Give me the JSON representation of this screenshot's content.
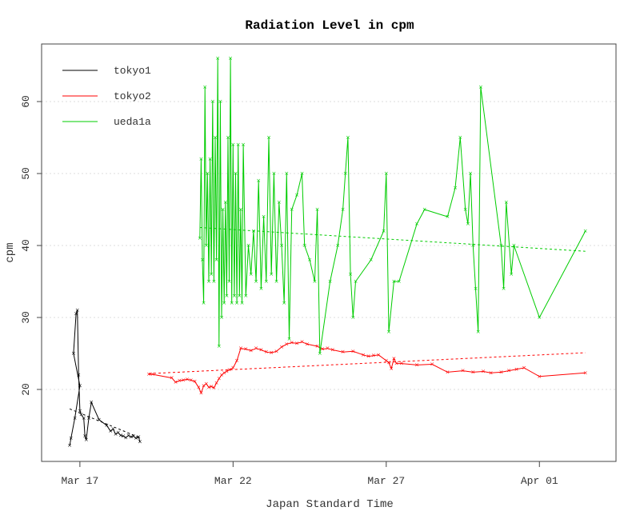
{
  "chart_data": {
    "type": "line",
    "title": "Radiation Level in cpm",
    "xlabel": "Japan Standard Time",
    "ylabel": "cpm",
    "x_type": "date",
    "xlim": [
      "2011-03-15T18:00",
      "2011-04-03T12:00"
    ],
    "ylim": [
      10,
      68
    ],
    "x_ticks": [
      {
        "label": "Mar 17",
        "value": "2011-03-17T00:00"
      },
      {
        "label": "Mar 22",
        "value": "2011-03-22T00:00"
      },
      {
        "label": "Mar 27",
        "value": "2011-03-27T00:00"
      },
      {
        "label": "Apr 01",
        "value": "2011-04-01T00:00"
      }
    ],
    "y_ticks": [
      20,
      30,
      40,
      50,
      60
    ],
    "grid": "horizontal dotted",
    "legend_position": "top-left",
    "series": [
      {
        "name": "tokyo1",
        "color": "#000000",
        "marker": "x",
        "points": [
          [
            "2011-03-16T16:00",
            12.2
          ],
          [
            "2011-03-16T17:00",
            13.2
          ],
          [
            "2011-03-16T20:00",
            16.0
          ],
          [
            "2011-03-17T00:00",
            20.5
          ],
          [
            "2011-03-16T19:00",
            25.0
          ],
          [
            "2011-03-16T21:00",
            30.5
          ],
          [
            "2011-03-16T22:00",
            31.0
          ],
          [
            "2011-03-16T23:00",
            22.0
          ],
          [
            "2011-03-17T00:00",
            17.0
          ],
          [
            "2011-03-17T01:00",
            16.5
          ],
          [
            "2011-03-17T03:00",
            16.0
          ],
          [
            "2011-03-17T04:00",
            13.5
          ],
          [
            "2011-03-17T05:00",
            13.0
          ],
          [
            "2011-03-17T07:00",
            16.0
          ],
          [
            "2011-03-17T09:00",
            18.2
          ],
          [
            "2011-03-17T15:00",
            15.8
          ],
          [
            "2011-03-17T21:00",
            15.0
          ],
          [
            "2011-03-18T00:00",
            14.2
          ],
          [
            "2011-03-18T02:00",
            14.5
          ],
          [
            "2011-03-18T04:00",
            13.8
          ],
          [
            "2011-03-18T06:00",
            14.0
          ],
          [
            "2011-03-18T08:00",
            13.6
          ],
          [
            "2011-03-18T10:00",
            13.5
          ],
          [
            "2011-03-18T12:00",
            13.3
          ],
          [
            "2011-03-18T14:00",
            13.6
          ],
          [
            "2011-03-18T16:00",
            13.4
          ],
          [
            "2011-03-18T18:00",
            13.5
          ],
          [
            "2011-03-18T20:00",
            13.2
          ],
          [
            "2011-03-18T22:00",
            13.4
          ],
          [
            "2011-03-18T23:00",
            12.7
          ]
        ],
        "trend": [
          [
            "2011-03-16T16:00",
            17.3
          ],
          [
            "2011-03-18T23:00",
            13.3
          ]
        ]
      },
      {
        "name": "tokyo2",
        "color": "#ff0000",
        "marker": "x",
        "points": [
          [
            "2011-03-19T06:00",
            22.1
          ],
          [
            "2011-03-19T09:00",
            22.1
          ],
          [
            "2011-03-20T00:00",
            21.6
          ],
          [
            "2011-03-20T03:00",
            21.0
          ],
          [
            "2011-03-20T06:00",
            21.2
          ],
          [
            "2011-03-20T09:00",
            21.3
          ],
          [
            "2011-03-20T12:00",
            21.4
          ],
          [
            "2011-03-20T15:00",
            21.3
          ],
          [
            "2011-03-20T18:00",
            21.1
          ],
          [
            "2011-03-20T21:00",
            20.3
          ],
          [
            "2011-03-20T23:00",
            19.5
          ],
          [
            "2011-03-21T01:00",
            20.5
          ],
          [
            "2011-03-21T03:00",
            20.8
          ],
          [
            "2011-03-21T05:00",
            20.3
          ],
          [
            "2011-03-21T07:00",
            20.4
          ],
          [
            "2011-03-21T09:00",
            20.2
          ],
          [
            "2011-03-21T11:00",
            20.9
          ],
          [
            "2011-03-21T13:00",
            21.5
          ],
          [
            "2011-03-21T15:00",
            22.0
          ],
          [
            "2011-03-21T17:00",
            22.3
          ],
          [
            "2011-03-21T19:00",
            22.5
          ],
          [
            "2011-03-21T21:00",
            22.7
          ],
          [
            "2011-03-22T00:00",
            23.0
          ],
          [
            "2011-03-22T03:00",
            24.0
          ],
          [
            "2011-03-22T06:00",
            25.7
          ],
          [
            "2011-03-22T10:00",
            25.6
          ],
          [
            "2011-03-22T14:00",
            25.4
          ],
          [
            "2011-03-22T18:00",
            25.7
          ],
          [
            "2011-03-22T22:00",
            25.5
          ],
          [
            "2011-03-23T02:00",
            25.2
          ],
          [
            "2011-03-23T06:00",
            25.1
          ],
          [
            "2011-03-23T10:00",
            25.3
          ],
          [
            "2011-03-23T14:00",
            25.9
          ],
          [
            "2011-03-23T18:00",
            26.3
          ],
          [
            "2011-03-23T22:00",
            26.5
          ],
          [
            "2011-03-24T02:00",
            26.4
          ],
          [
            "2011-03-24T06:00",
            26.6
          ],
          [
            "2011-03-24T10:00",
            26.3
          ],
          [
            "2011-03-24T18:00",
            26.0
          ],
          [
            "2011-03-24T22:00",
            25.6
          ],
          [
            "2011-03-25T02:00",
            25.7
          ],
          [
            "2011-03-25T06:00",
            25.5
          ],
          [
            "2011-03-25T14:00",
            25.2
          ],
          [
            "2011-03-25T22:00",
            25.3
          ],
          [
            "2011-03-26T06:00",
            24.8
          ],
          [
            "2011-03-26T10:00",
            24.6
          ],
          [
            "2011-03-26T14:00",
            24.7
          ],
          [
            "2011-03-26T18:00",
            24.8
          ],
          [
            "2011-03-27T00:00",
            24.0
          ],
          [
            "2011-03-27T02:00",
            23.7
          ],
          [
            "2011-03-27T04:00",
            22.9
          ],
          [
            "2011-03-27T06:00",
            24.3
          ],
          [
            "2011-03-27T08:00",
            23.6
          ],
          [
            "2011-03-27T12:00",
            23.6
          ],
          [
            "2011-03-28T00:00",
            23.4
          ],
          [
            "2011-03-28T12:00",
            23.5
          ],
          [
            "2011-03-29T00:00",
            22.4
          ],
          [
            "2011-03-29T12:00",
            22.6
          ],
          [
            "2011-03-29T20:00",
            22.4
          ],
          [
            "2011-03-30T04:00",
            22.5
          ],
          [
            "2011-03-30T10:00",
            22.3
          ],
          [
            "2011-03-30T18:00",
            22.4
          ],
          [
            "2011-03-31T00:00",
            22.6
          ],
          [
            "2011-03-31T06:00",
            22.8
          ],
          [
            "2011-03-31T12:00",
            23.0
          ],
          [
            "2011-04-01T00:00",
            21.8
          ],
          [
            "2011-04-02T12:00",
            22.3
          ]
        ],
        "trend": [
          [
            "2011-03-19T06:00",
            22.2
          ],
          [
            "2011-04-02T12:00",
            25.1
          ]
        ]
      },
      {
        "name": "ueda1a",
        "color": "#00cc00",
        "marker": "x",
        "points": [
          [
            "2011-03-20T22:00",
            41.0
          ],
          [
            "2011-03-20T23:00",
            52.0
          ],
          [
            "2011-03-21T00:00",
            38.0
          ],
          [
            "2011-03-21T01:00",
            32.0
          ],
          [
            "2011-03-21T02:00",
            62.0
          ],
          [
            "2011-03-21T03:00",
            40.0
          ],
          [
            "2011-03-21T04:00",
            50.0
          ],
          [
            "2011-03-21T05:00",
            35.0
          ],
          [
            "2011-03-21T06:00",
            52.0
          ],
          [
            "2011-03-21T07:00",
            36.0
          ],
          [
            "2011-03-21T08:00",
            60.0
          ],
          [
            "2011-03-21T09:00",
            35.0
          ],
          [
            "2011-03-21T10:00",
            55.0
          ],
          [
            "2011-03-21T11:00",
            38.0
          ],
          [
            "2011-03-21T12:00",
            66.0
          ],
          [
            "2011-03-21T13:00",
            26.0
          ],
          [
            "2011-03-21T14:00",
            60.0
          ],
          [
            "2011-03-21T15:00",
            30.0
          ],
          [
            "2011-03-21T16:00",
            45.0
          ],
          [
            "2011-03-21T17:00",
            32.0
          ],
          [
            "2011-03-21T18:00",
            46.0
          ],
          [
            "2011-03-21T19:00",
            33.0
          ],
          [
            "2011-03-21T20:00",
            55.0
          ],
          [
            "2011-03-21T21:00",
            35.0
          ],
          [
            "2011-03-21T22:00",
            66.0
          ],
          [
            "2011-03-21T23:00",
            32.0
          ],
          [
            "2011-03-22T00:00",
            54.0
          ],
          [
            "2011-03-22T01:00",
            33.0
          ],
          [
            "2011-03-22T02:00",
            50.0
          ],
          [
            "2011-03-22T03:00",
            32.0
          ],
          [
            "2011-03-22T04:00",
            54.0
          ],
          [
            "2011-03-22T05:00",
            33.0
          ],
          [
            "2011-03-22T06:00",
            45.0
          ],
          [
            "2011-03-22T07:00",
            32.0
          ],
          [
            "2011-03-22T08:00",
            54.0
          ],
          [
            "2011-03-22T10:00",
            33.0
          ],
          [
            "2011-03-22T12:00",
            40.0
          ],
          [
            "2011-03-22T14:00",
            36.0
          ],
          [
            "2011-03-22T16:00",
            42.0
          ],
          [
            "2011-03-22T18:00",
            35.0
          ],
          [
            "2011-03-22T20:00",
            49.0
          ],
          [
            "2011-03-22T22:00",
            34.0
          ],
          [
            "2011-03-23T00:00",
            44.0
          ],
          [
            "2011-03-23T02:00",
            35.0
          ],
          [
            "2011-03-23T04:00",
            55.0
          ],
          [
            "2011-03-23T06:00",
            36.0
          ],
          [
            "2011-03-23T08:00",
            50.0
          ],
          [
            "2011-03-23T10:00",
            35.0
          ],
          [
            "2011-03-23T12:00",
            46.0
          ],
          [
            "2011-03-23T14:00",
            40.0
          ],
          [
            "2011-03-23T16:00",
            32.0
          ],
          [
            "2011-03-23T18:00",
            50.0
          ],
          [
            "2011-03-23T20:00",
            27.0
          ],
          [
            "2011-03-23T22:00",
            45.0
          ],
          [
            "2011-03-24T02:00",
            47.0
          ],
          [
            "2011-03-24T06:00",
            50.0
          ],
          [
            "2011-03-24T08:00",
            40.0
          ],
          [
            "2011-03-24T12:00",
            38.0
          ],
          [
            "2011-03-24T16:00",
            35.0
          ],
          [
            "2011-03-24T18:00",
            45.0
          ],
          [
            "2011-03-24T20:00",
            25.0
          ],
          [
            "2011-03-25T04:00",
            35.0
          ],
          [
            "2011-03-25T10:00",
            40.0
          ],
          [
            "2011-03-25T14:00",
            45.0
          ],
          [
            "2011-03-25T16:00",
            50.0
          ],
          [
            "2011-03-25T18:00",
            55.0
          ],
          [
            "2011-03-25T20:00",
            36.0
          ],
          [
            "2011-03-25T22:00",
            30.0
          ],
          [
            "2011-03-26T00:00",
            35.0
          ],
          [
            "2011-03-26T12:00",
            38.0
          ],
          [
            "2011-03-26T22:00",
            42.0
          ],
          [
            "2011-03-27T00:00",
            50.0
          ],
          [
            "2011-03-27T02:00",
            28.0
          ],
          [
            "2011-03-27T06:00",
            35.0
          ],
          [
            "2011-03-27T10:00",
            35.0
          ],
          [
            "2011-03-28T00:00",
            43.0
          ],
          [
            "2011-03-28T06:00",
            45.0
          ],
          [
            "2011-03-29T00:00",
            44.0
          ],
          [
            "2011-03-29T06:00",
            48.0
          ],
          [
            "2011-03-29T10:00",
            55.0
          ],
          [
            "2011-03-29T14:00",
            45.0
          ],
          [
            "2011-03-29T16:00",
            43.0
          ],
          [
            "2011-03-29T18:00",
            50.0
          ],
          [
            "2011-03-29T20:00",
            40.0
          ],
          [
            "2011-03-29T22:00",
            34.0
          ],
          [
            "2011-03-30T00:00",
            28.0
          ],
          [
            "2011-03-30T02:00",
            62.0
          ],
          [
            "2011-03-30T18:00",
            40.0
          ],
          [
            "2011-03-30T20:00",
            34.0
          ],
          [
            "2011-03-30T22:00",
            46.0
          ],
          [
            "2011-03-31T02:00",
            36.0
          ],
          [
            "2011-03-31T04:00",
            40.0
          ],
          [
            "2011-04-01T00:00",
            30.0
          ],
          [
            "2011-04-02T12:00",
            42.0
          ]
        ],
        "trend": [
          [
            "2011-03-20T22:00",
            42.5
          ],
          [
            "2011-04-02T12:00",
            39.2
          ]
        ]
      }
    ]
  }
}
